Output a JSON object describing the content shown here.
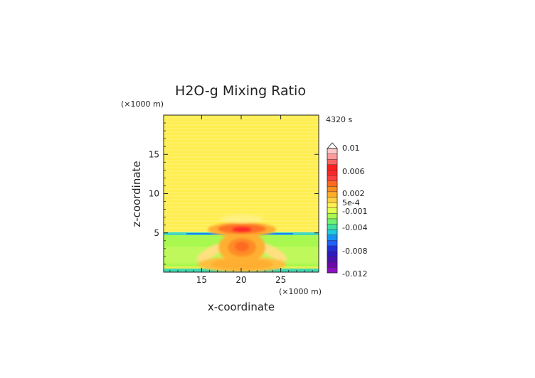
{
  "chart_data": {
    "type": "heatmap",
    "title": "H2O-g Mixing Ratio",
    "time_label": "4320 s",
    "xlabel": "x-coordinate",
    "ylabel": "z-coordinate",
    "x_unit": "(×1000 m)",
    "y_unit": "(×1000 m)",
    "xlim": [
      10.2,
      29.8
    ],
    "ylim": [
      0,
      20
    ],
    "x_ticks": [
      15,
      20,
      25
    ],
    "y_ticks": [
      5,
      10,
      15
    ],
    "colorbar": {
      "labels": [
        "0.01",
        "0.006",
        "0.002",
        "5e-4",
        "-0.001",
        "-0.004",
        "-0.008",
        "-0.012"
      ],
      "colors": [
        "#ffc8c8",
        "#ff9a9a",
        "#ff6464",
        "#ff1e1e",
        "#ff2828",
        "#ff4040",
        "#ff6a1e",
        "#ff8c1e",
        "#ffae28",
        "#ffd040",
        "#ffee50",
        "#e0ff50",
        "#a8f850",
        "#70f070",
        "#40e0a0",
        "#20c8e0",
        "#1890f0",
        "#2060ff",
        "#2030d8",
        "#3018c0",
        "#4a10b0",
        "#6a0aa8",
        "#8a10c0"
      ],
      "extend": "top"
    },
    "field_description": [
      {
        "region": "background",
        "value": "5e-4"
      },
      {
        "region": "layer z 4.6-5.0",
        "value": "-0.001"
      },
      {
        "region": "thin band z 5.0",
        "value": "-0.004"
      },
      {
        "region": "cap centre x 20 z 5.5",
        "value": "0.004"
      },
      {
        "region": "core x 20 z 3.5",
        "value": "0.003"
      }
    ]
  }
}
